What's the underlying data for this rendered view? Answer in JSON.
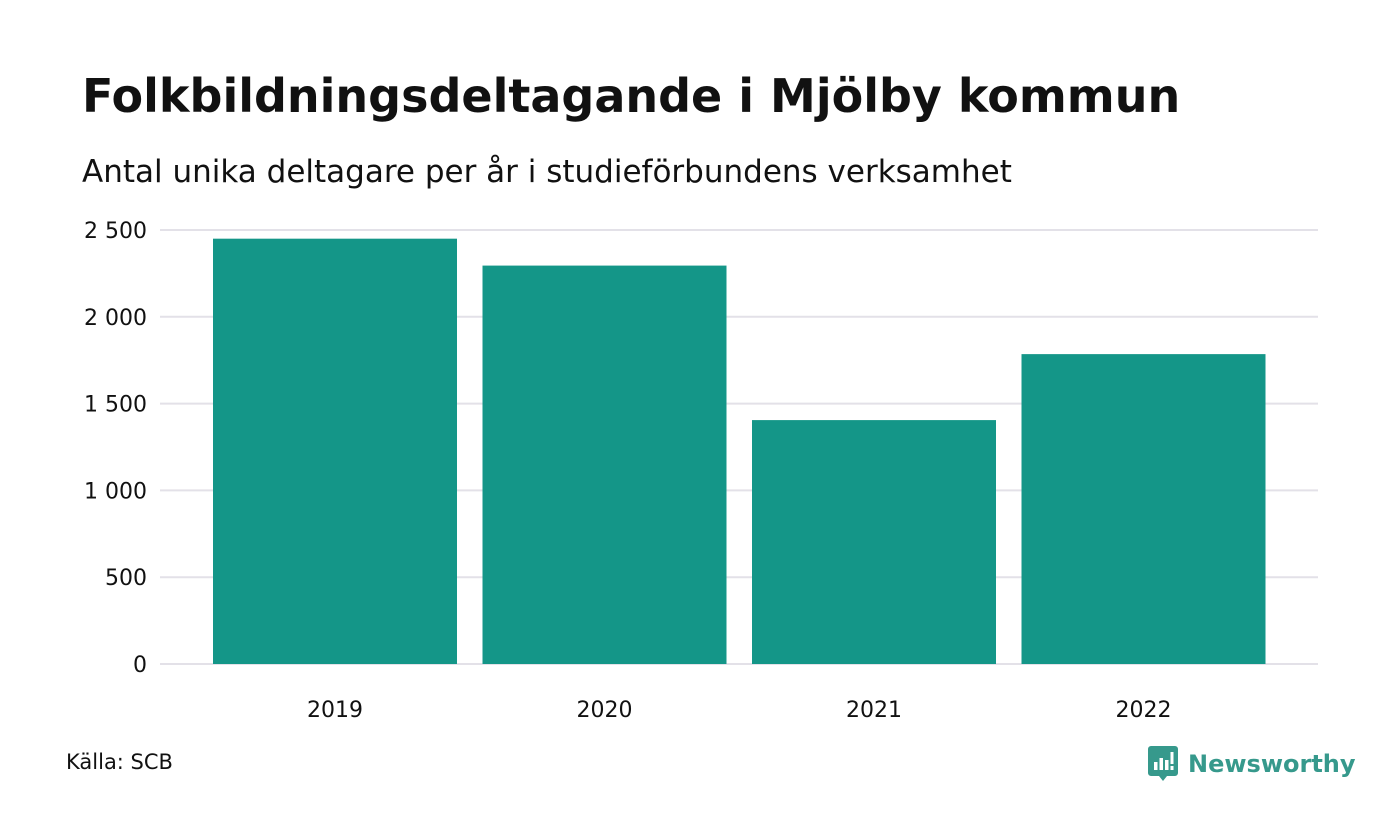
{
  "header": {
    "title": "Folkbildningsdeltagande i Mjölby kommun",
    "subtitle": "Antal unika deltagare per år i studieförbundens verksamhet"
  },
  "footer": {
    "source": "Källa: SCB",
    "brand_name": "Newsworthy",
    "brand_icon": "bar-chart-speech-bubble-icon"
  },
  "colors": {
    "bar": "#149688",
    "grid": "#e3e1e8",
    "brand": "#36998c",
    "text": "#111111"
  },
  "chart_data": {
    "type": "bar",
    "title": "Folkbildningsdeltagande i Mjölby kommun",
    "subtitle": "Antal unika deltagare per år i studieförbundens verksamhet",
    "categories": [
      "2019",
      "2020",
      "2021",
      "2022"
    ],
    "values": [
      2450,
      2295,
      1405,
      1785
    ],
    "ylim": [
      0,
      2500
    ],
    "yticks": [
      0,
      500,
      1000,
      1500,
      2000,
      2500
    ],
    "ytick_labels": [
      "0",
      "500",
      "1 000",
      "1 500",
      "2 000",
      "2 500"
    ],
    "grid": true,
    "legend": "none"
  }
}
